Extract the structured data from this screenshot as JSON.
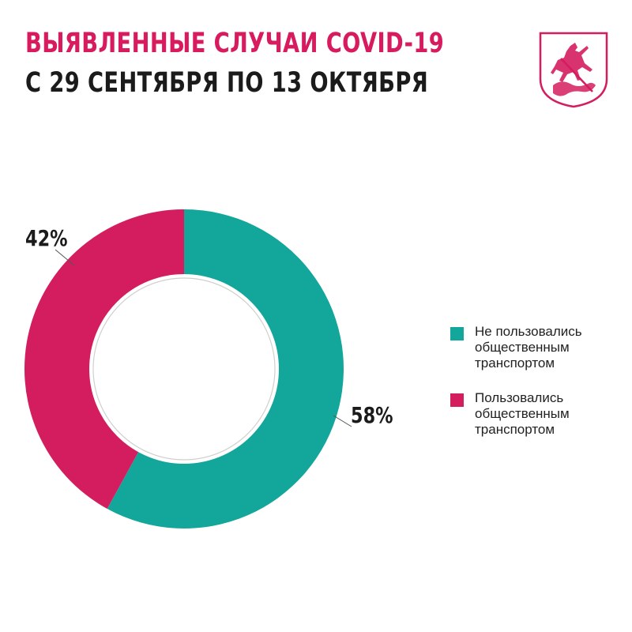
{
  "header": {
    "title_line1": "ВЫЯВЛЕННЫЕ СЛУЧАИ COVID-19",
    "title_line2": "С 29 СЕНТЯБРЯ ПО 13 ОКТЯБРЯ"
  },
  "colors": {
    "accent": "#d81b5e",
    "teal": "#13a79c",
    "magenta": "#d41d5e",
    "text": "#1b1b1b"
  },
  "emblem": {
    "icon": "moscow-coat-of-arms-icon"
  },
  "chart_data": {
    "type": "pie",
    "variant": "donut",
    "categories": [
      "Не пользовались общественным транспортом",
      "Пользовались общественным транспортом"
    ],
    "values": [
      58,
      42
    ],
    "data_labels": [
      "58%",
      "42%"
    ],
    "colors": [
      "#13a79c",
      "#d41d5e"
    ],
    "legend_position": "right",
    "title": "",
    "xlabel": "",
    "ylabel": ""
  },
  "legend": [
    {
      "label": "Не пользовались общественным транспортом",
      "color": "#13a79c"
    },
    {
      "label": "Пользовались общественным транспортом",
      "color": "#d41d5e"
    }
  ]
}
